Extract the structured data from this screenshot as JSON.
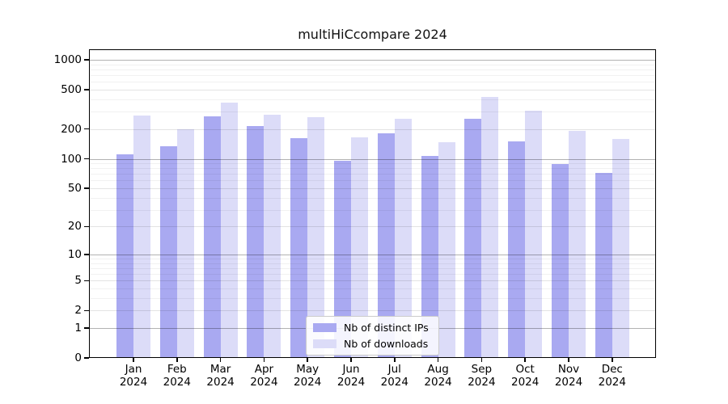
{
  "chart_data": {
    "type": "bar",
    "title": "multiHiCcompare 2024",
    "categories": [
      "Jan",
      "Feb",
      "Mar",
      "Apr",
      "May",
      "Jun",
      "Jul",
      "Aug",
      "Sep",
      "Oct",
      "Nov",
      "Dec"
    ],
    "year_label": "2024",
    "series": [
      {
        "name": "Nb of distinct IPs",
        "color": "#a9a9f1",
        "values": [
          111,
          134,
          270,
          216,
          161,
          95,
          182,
          106,
          254,
          150,
          88,
          72
        ]
      },
      {
        "name": "Nb of downloads",
        "color": "#dcdcf8",
        "values": [
          272,
          200,
          373,
          281,
          265,
          165,
          252,
          148,
          421,
          308,
          191,
          158
        ]
      }
    ],
    "yticks": [
      1000,
      500,
      200,
      100,
      50,
      20,
      10,
      5,
      2,
      1,
      0
    ],
    "yscale": "log10(value+1) with 0 at baseline",
    "ylim": [
      0,
      1100
    ],
    "xlabel": "",
    "ylabel": "",
    "grid": "horizontal, log major and minor lines",
    "legend_position": "lower center inside plot",
    "axis_color": "#000000",
    "grid_major_color": "#b3b3b3",
    "grid_minor_color": "#ededed"
  }
}
